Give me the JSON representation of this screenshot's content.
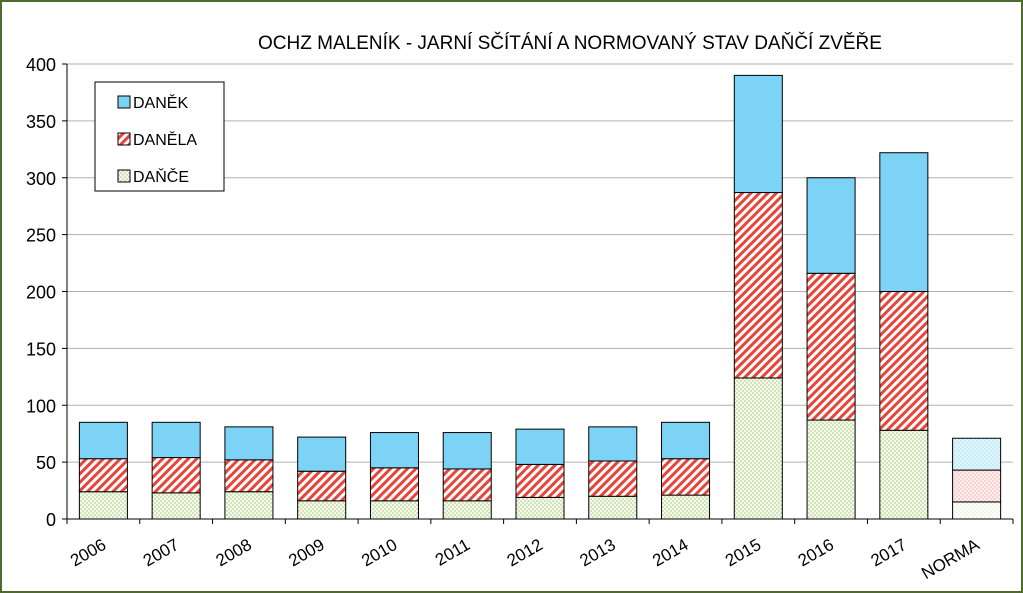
{
  "chart_data": {
    "type": "bar",
    "stacked": true,
    "title": "OCHZ MALENÍK - JARNÍ SČÍTÁNÍ A NORMOVANÝ STAV DAŇČÍ ZVĚŘE",
    "xlabel": "",
    "ylabel": "",
    "ylim": [
      0,
      400
    ],
    "yticks": [
      "0",
      "50",
      "100",
      "150",
      "200",
      "250",
      "300",
      "350",
      "400"
    ],
    "grid": true,
    "legend_position": "top-left",
    "categories": [
      "2006",
      "2007",
      "2008",
      "2009",
      "2010",
      "2011",
      "2012",
      "2013",
      "2014",
      "2015",
      "2016",
      "2017",
      "NORMA"
    ],
    "series": [
      {
        "name": "DAŇČE",
        "color": "#e3f1cf",
        "pattern": "dots",
        "values": [
          24,
          23,
          24,
          16,
          16,
          16,
          19,
          20,
          21,
          124,
          87,
          78,
          15
        ]
      },
      {
        "name": "DANĚLA",
        "color": "#e8443a",
        "pattern": "diagonal-stripes",
        "values": [
          29,
          31,
          28,
          26,
          29,
          28,
          29,
          31,
          32,
          163,
          129,
          122,
          28
        ]
      },
      {
        "name": "DANĚK",
        "color": "#7dd3f5",
        "pattern": "solid",
        "values": [
          32,
          31,
          29,
          30,
          31,
          32,
          31,
          30,
          32,
          103,
          84,
          122,
          28
        ]
      }
    ],
    "legend_order": [
      "DANĚK",
      "DANĚLA",
      "DAŇČE"
    ],
    "colors": {
      "frame": "#4e6a2c",
      "grid": "#b0b0b0",
      "norma_light": "#c9ecfb"
    }
  }
}
